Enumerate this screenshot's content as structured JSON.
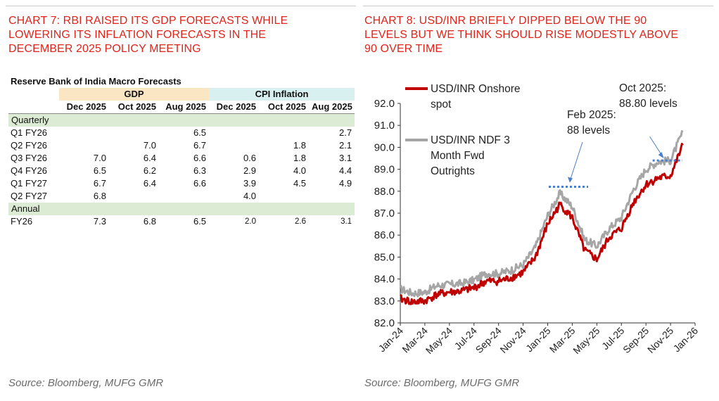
{
  "left_title": "CHART 7: RBI RAISED ITS GDP FORECASTS WHILE LOWERING ITS INFLATION FORECASTS IN THE DECEMBER 2025 POLICY MEETING",
  "left_title_lines": [
    "CHART 7: RBI RAISED ITS GDP FORECASTS WHILE",
    "LOWERING ITS INFLATION FORECASTS IN THE",
    "DECEMBER 2025 POLICY MEETING"
  ],
  "right_title_lines": [
    "CHART 8: USD/INR BRIEFLY DIPPED BELOW THE 90",
    "LEVELS BUT WE THINK SHOULD RISE MODESTLY ABOVE",
    "90 OVER TIME"
  ],
  "left_source": "Source: Bloomberg, MUFG GMR",
  "right_source": "Source: Bloomberg, MUFG GMR",
  "table": {
    "title": "Reserve Bank of India Macro Forecasts",
    "group_gdp": "GDP",
    "group_cpi": "CPI Inflation",
    "columns": [
      "Dec 2025",
      "Oct 2025",
      "Aug 2025",
      "Dec 2025",
      "Oct 2025",
      "Aug 2025"
    ],
    "section_quarterly": "Quarterly",
    "quarterly_rows": [
      {
        "label": "Q1 FY26",
        "values": [
          "",
          "",
          "6.5",
          "",
          "",
          "2.7"
        ]
      },
      {
        "label": "Q2 FY26",
        "values": [
          "",
          "7.0",
          "6.7",
          "",
          "1.8",
          "2.1"
        ]
      },
      {
        "label": "Q3 FY26",
        "values": [
          "7.0",
          "6.4",
          "6.6",
          "0.6",
          "1.8",
          "3.1"
        ]
      },
      {
        "label": "Q4 FY26",
        "values": [
          "6.5",
          "6.2",
          "6.3",
          "2.9",
          "4.0",
          "4.4"
        ]
      },
      {
        "label": "Q1 FY27",
        "values": [
          "6.7",
          "6.4",
          "6.6",
          "3.9",
          "4.5",
          "4.9"
        ]
      },
      {
        "label": "Q2 FY27",
        "values": [
          "6.8",
          "",
          "",
          "4.0",
          "",
          ""
        ]
      }
    ],
    "section_annual": "Annual",
    "annual_rows": [
      {
        "label": "FY26",
        "values": [
          "7.3",
          "6.8",
          "6.5",
          "2.0",
          "2.6",
          "3.1"
        ]
      }
    ]
  },
  "chart_data": {
    "type": "line",
    "title": "CHART 8: USD/INR BRIEFLY DIPPED BELOW THE 90 LEVELS BUT WE THINK SHOULD RISE MODESTLY ABOVE 90 OVER TIME",
    "ylim": [
      82.0,
      92.0
    ],
    "yticks": [
      "82.0",
      "83.0",
      "84.0",
      "85.0",
      "86.0",
      "87.0",
      "88.0",
      "89.0",
      "90.0",
      "91.0",
      "92.0"
    ],
    "xticks": [
      "Jan-24",
      "Mar-24",
      "May-24",
      "Jul-24",
      "Sep-24",
      "Nov-24",
      "Jan-25",
      "Mar-25",
      "May-25",
      "Jul-25",
      "Sep-25",
      "Nov-25",
      "Jan-26"
    ],
    "grid": false,
    "legend_position": "top-left",
    "colors": {
      "onshore": "#c00000",
      "ndf": "#a6a6a6",
      "annotation_line": "#4a7ec8"
    },
    "series": [
      {
        "name": "USD/INR Onshore spot",
        "legend_lines": [
          "USD/INR Onshore",
          "spot"
        ],
        "x": [
          "Jan-24",
          "Feb-24",
          "Mar-24",
          "Apr-24",
          "May-24",
          "Jun-24",
          "Jul-24",
          "Aug-24",
          "Sep-24",
          "Oct-24",
          "Nov-24",
          "Dec-24",
          "Jan-25",
          "Feb-25",
          "Mar-25",
          "Apr-25",
          "May-25",
          "Jun-25",
          "Jul-25",
          "Aug-25",
          "Sep-25",
          "Oct-25",
          "Nov-25",
          "Dec-25"
        ],
        "values": [
          83.1,
          82.95,
          83.0,
          83.3,
          83.4,
          83.45,
          83.6,
          83.9,
          83.9,
          84.05,
          84.3,
          85.0,
          86.5,
          87.4,
          86.8,
          85.3,
          84.9,
          85.9,
          86.3,
          87.5,
          88.3,
          88.6,
          88.7,
          90.1
        ]
      },
      {
        "name": "USD/INR NDF 3 Month Fwd Outrights",
        "legend_lines": [
          "USD/INR NDF 3",
          "Month Fwd",
          "Outrights"
        ],
        "x": [
          "Jan-24",
          "Feb-24",
          "Mar-24",
          "Apr-24",
          "May-24",
          "Jun-24",
          "Jul-24",
          "Aug-24",
          "Sep-24",
          "Oct-24",
          "Nov-24",
          "Dec-24",
          "Jan-25",
          "Feb-25",
          "Mar-25",
          "Apr-25",
          "May-25",
          "Jun-25",
          "Jul-25",
          "Aug-25",
          "Sep-25",
          "Oct-25",
          "Nov-25",
          "Dec-25"
        ],
        "values": [
          83.55,
          83.35,
          83.4,
          83.7,
          83.75,
          83.8,
          83.95,
          84.25,
          84.25,
          84.4,
          84.65,
          85.45,
          86.9,
          87.9,
          87.3,
          85.8,
          85.5,
          86.3,
          86.8,
          88.1,
          89.0,
          89.35,
          89.4,
          90.7
        ]
      }
    ],
    "annotations": [
      {
        "lines": [
          "Feb 2025:",
          "88 levels"
        ],
        "x": "Feb-25",
        "level": 88.2
      },
      {
        "lines": [
          "Oct 2025:",
          "88.80 levels"
        ],
        "x": "Oct-25",
        "level": 89.4
      }
    ]
  }
}
